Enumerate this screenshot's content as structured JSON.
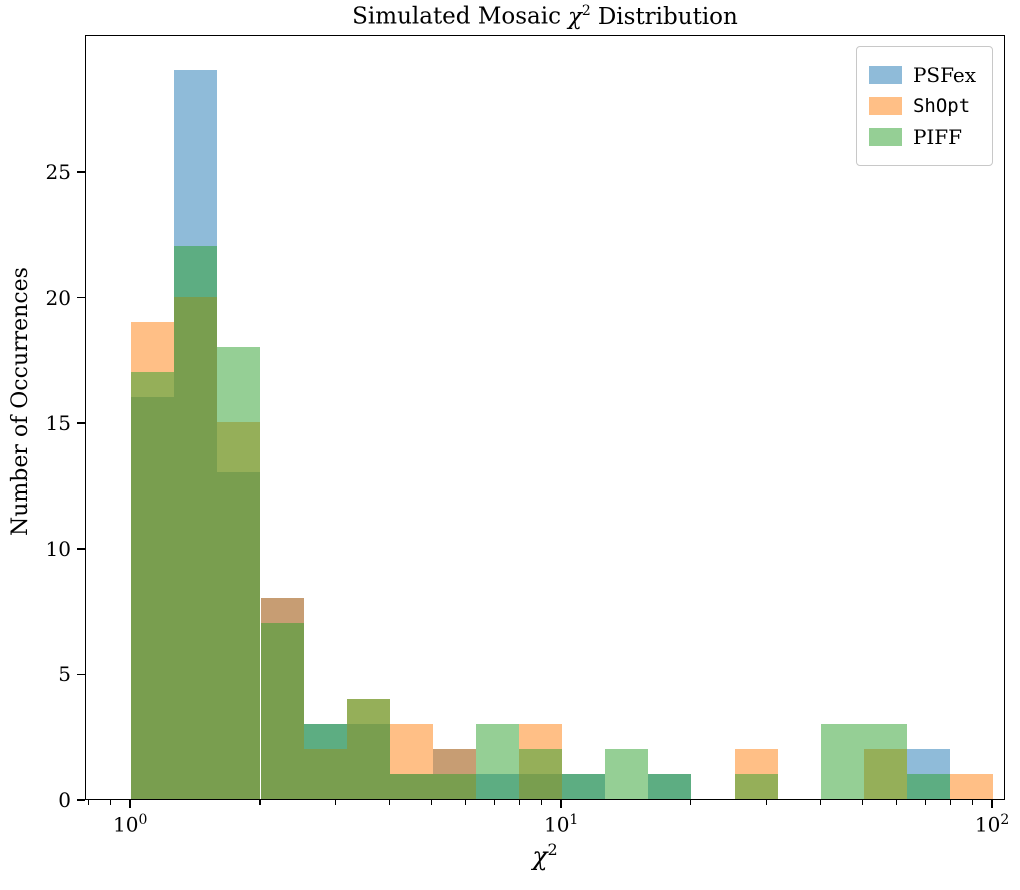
{
  "title": {
    "pre": "Simulated Mosaic",
    "chi": "χ",
    "exp": "2",
    "post": "Distribution"
  },
  "ylabel": "Number of Occurrences",
  "xlabel": {
    "chi": "χ",
    "exp": "2"
  },
  "x_ticks": [
    {
      "log10": 0,
      "base": "10",
      "exp": "0"
    },
    {
      "log10": 1,
      "base": "10",
      "exp": "1"
    },
    {
      "log10": 2,
      "base": "10",
      "exp": "2"
    }
  ],
  "y_ticks": [
    0,
    5,
    10,
    15,
    20,
    25
  ],
  "legend": [
    {
      "label": "PSFex",
      "color": "#1f77b4",
      "mono": false
    },
    {
      "label": "ShOpt",
      "color": "#ff7f0e",
      "mono": true
    },
    {
      "label": "PIFF",
      "color": "#2ca02c",
      "mono": false
    }
  ],
  "chart_data": {
    "type": "histogram",
    "title": "Simulated Mosaic χ² Distribution",
    "xlabel": "χ²",
    "ylabel": "Number of Occurrences",
    "x_scale": "log10",
    "grid": false,
    "legend_position": "upper right",
    "bin_edges": [
      1.0,
      1.259,
      1.585,
      1.995,
      2.512,
      3.162,
      3.981,
      5.012,
      6.31,
      7.943,
      10.0,
      12.589,
      15.849,
      19.953,
      25.119,
      31.623,
      39.811,
      50.119,
      63.096,
      79.433,
      100.0
    ],
    "series": [
      {
        "name": "PSFex",
        "color": "#1f77b4",
        "alpha": 0.5,
        "counts": [
          16,
          29,
          13,
          8,
          3,
          3,
          1,
          2,
          1,
          1,
          1,
          0,
          1,
          0,
          0,
          0,
          0,
          0,
          2,
          0
        ]
      },
      {
        "name": "ShOpt",
        "color": "#ff7f0e",
        "alpha": 0.5,
        "counts": [
          19,
          20,
          15,
          8,
          2,
          4,
          3,
          2,
          0,
          3,
          0,
          0,
          0,
          0,
          2,
          0,
          0,
          2,
          0,
          1
        ]
      },
      {
        "name": "PIFF",
        "color": "#2ca02c",
        "alpha": 0.5,
        "counts": [
          17,
          22,
          18,
          7,
          3,
          4,
          1,
          1,
          3,
          2,
          1,
          2,
          1,
          0,
          1,
          0,
          3,
          3,
          1,
          0
        ]
      }
    ],
    "ylim": [
      0,
      30.45
    ],
    "xlim_log10": [
      -0.105,
      2.03
    ]
  }
}
